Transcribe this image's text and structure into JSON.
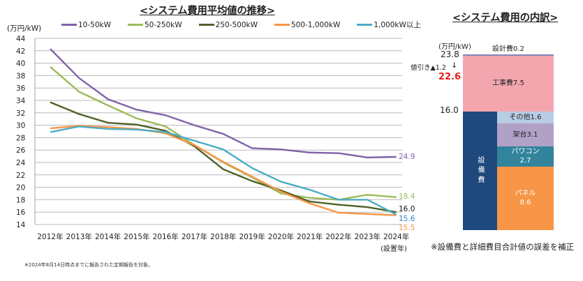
{
  "chart_data": [
    {
      "type": "line",
      "title": "<システム費用平均値の推移>",
      "ylabel": "(万円/kW)",
      "xlabel": "(設置年)",
      "ylim": [
        14,
        44
      ],
      "yticks": [
        44,
        42,
        40,
        38,
        36,
        34,
        32,
        30,
        28,
        26,
        24,
        22,
        20,
        18,
        16,
        14
      ],
      "grid": true,
      "legend_position": "top",
      "categories": [
        "2012年",
        "2013年",
        "2014年",
        "2015年",
        "2016年",
        "2017年",
        "2018年",
        "2019年",
        "2020年",
        "2021年",
        "2022年",
        "2023年",
        "2024年"
      ],
      "series": [
        {
          "name": "10-50kW",
          "color": "#7f63a8",
          "values": [
            42.3,
            37.6,
            34.2,
            32.5,
            31.6,
            30.0,
            28.6,
            26.3,
            26.1,
            25.6,
            25.5,
            24.8,
            24.9
          ],
          "end_label": "24.9",
          "label_color": "#7f63a8"
        },
        {
          "name": "50-250kW",
          "color": "#9bbb59",
          "values": [
            39.4,
            35.4,
            33.2,
            31.1,
            29.8,
            26.8,
            24.0,
            21.6,
            19.0,
            18.3,
            18.0,
            18.8,
            18.4
          ],
          "end_label": "18.4",
          "label_color": "#9bbb59"
        },
        {
          "name": "250-500kW",
          "color": "#4f6228",
          "values": [
            33.7,
            31.8,
            30.4,
            30.1,
            29.1,
            26.6,
            22.9,
            21.0,
            19.5,
            17.7,
            17.2,
            16.8,
            16.0
          ],
          "end_label": "16.0",
          "label_color": "#111111"
        },
        {
          "name": "500-1,000kW",
          "color": "#f79646",
          "values": [
            29.5,
            29.9,
            29.7,
            29.4,
            28.7,
            26.8,
            24.1,
            21.7,
            19.3,
            17.4,
            15.9,
            15.7,
            15.5
          ],
          "end_label": "15.5",
          "label_color": "#f79646"
        },
        {
          "name": "1,000kW以上",
          "color": "#4bacc6",
          "values": [
            28.9,
            29.8,
            29.4,
            29.3,
            28.9,
            27.5,
            26.1,
            23.1,
            20.9,
            19.6,
            18.0,
            18.0,
            15.6
          ],
          "end_label": "15.6",
          "label_color": "#2e86c1"
        }
      ]
    },
    {
      "type": "bar",
      "subtype": "stacked-breakdown",
      "title": "<システム費用の内訳>",
      "ylabel": "(万円/kW)",
      "total_label": "23.8",
      "discount_label": "値引き▲1.2",
      "net_total_label": "22.6",
      "equipment_total_label": "16.0",
      "equipment_column_label": "設備費",
      "segments": [
        {
          "name": "パネル",
          "value": 8.6,
          "label": "パネル\n8.6",
          "color": "#f79646"
        },
        {
          "name": "パワコン",
          "value": 2.7,
          "label": "パワコン\n2.7",
          "color": "#31849b"
        },
        {
          "name": "架台",
          "value": 3.1,
          "label": "架台3.1",
          "color": "#b2a1c7"
        },
        {
          "name": "その他",
          "value": 1.6,
          "label": "その他1.6",
          "color": "#b8cce4"
        },
        {
          "name": "工事費",
          "value": 7.5,
          "label": "工事費7.5",
          "color": "#f4a6ae"
        },
        {
          "name": "設計費",
          "value": 0.2,
          "label": "設計費0.2",
          "color": "#8085b5"
        }
      ],
      "equipment_color": "#1f497d"
    }
  ],
  "notes": {
    "left": "※2024年8月14日時点までに報告された定期報告を対象。",
    "right": "※設備費と詳細費目合計値の誤差を補正"
  }
}
